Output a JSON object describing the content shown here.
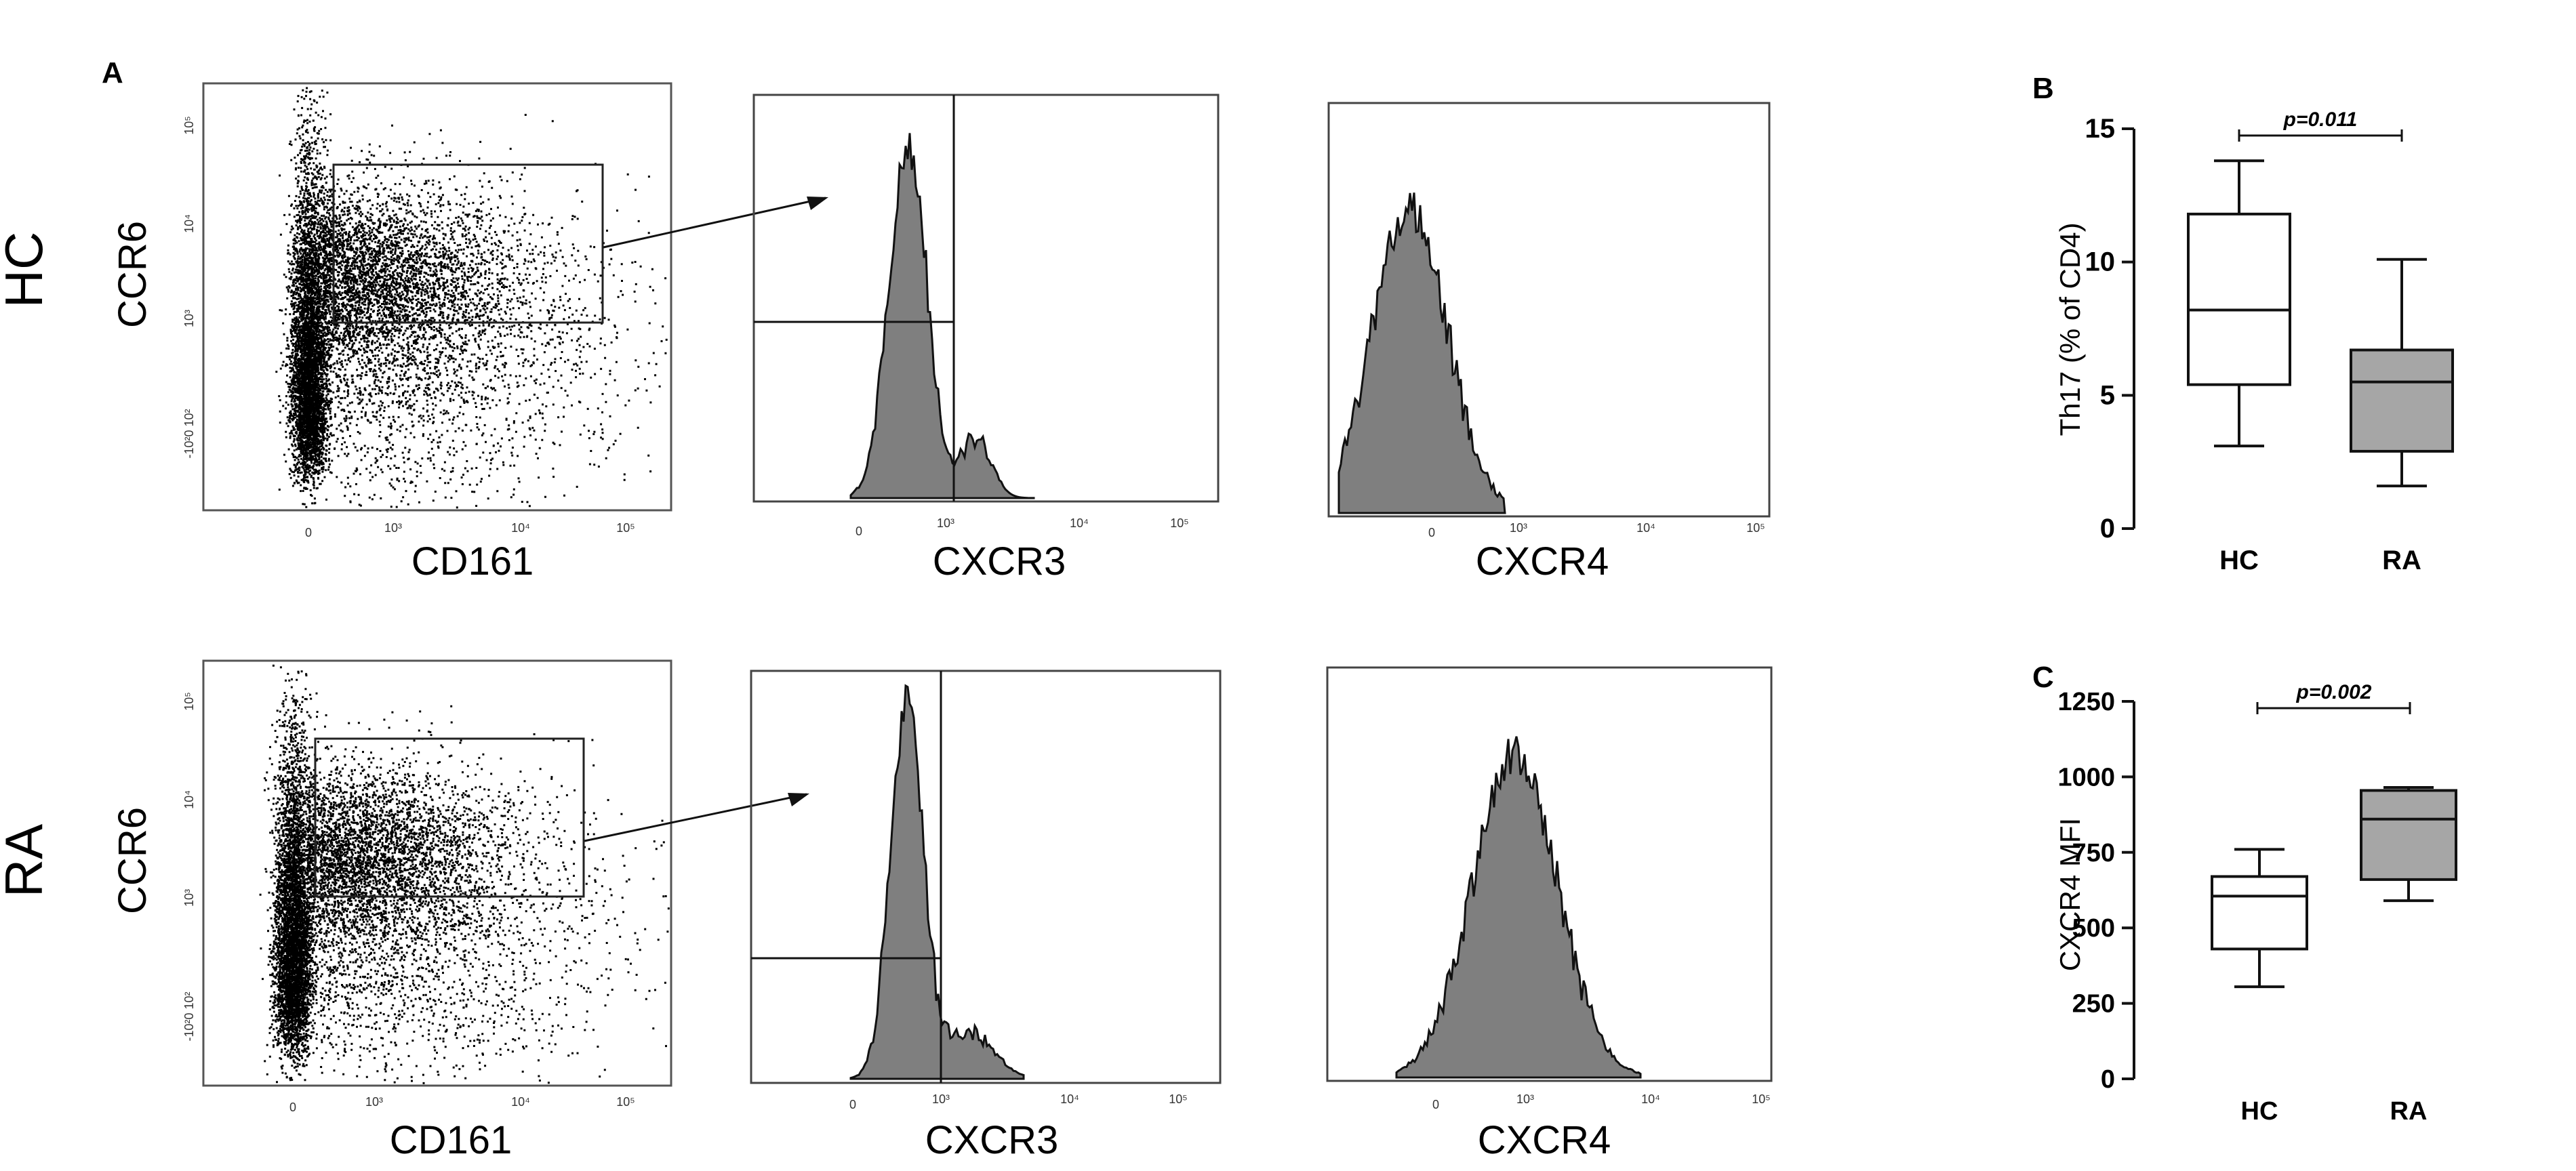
{
  "panels": {
    "A": {
      "letter": "A",
      "row_labels": [
        "HC",
        "RA"
      ],
      "dotplot": {
        "xlabel": "CD161",
        "ylabel": "CCR6",
        "xticks": [
          "0",
          "10³",
          "10⁴",
          "10⁵"
        ],
        "yticks": [
          "-10²0 10²",
          "10³",
          "10⁴",
          "10⁵"
        ]
      },
      "histograms": [
        {
          "xlabel": "CXCR3",
          "xticks": [
            "0",
            "10³",
            "10⁴",
            "10⁵"
          ]
        },
        {
          "xlabel": "CXCR4",
          "xticks": [
            "0",
            "10³",
            "10⁴",
            "10⁵"
          ]
        }
      ]
    },
    "B": {
      "letter": "B",
      "ylabel": "Th17 (% of CD4)",
      "p_label": "p=0.011"
    },
    "C": {
      "letter": "C",
      "ylabel": "CXCR4 MFI",
      "p_label": "p=0.002"
    }
  },
  "colors": {
    "box_hc": "#ffffff",
    "box_ra": "#a6a6a6",
    "histogram_fill": "#7f7f7f",
    "dots": "#000000"
  },
  "chart_data": [
    {
      "id": "panel-B",
      "type": "box",
      "title": "",
      "xlabel": "",
      "ylabel": "Th17 (% of CD4)",
      "categories": [
        "HC",
        "RA"
      ],
      "ylim": [
        0,
        15
      ],
      "yticks": [
        0,
        5,
        10,
        15
      ],
      "boxes": [
        {
          "name": "HC",
          "min": 3.1,
          "q1": 5.4,
          "median": 8.2,
          "q3": 11.8,
          "max": 13.8
        },
        {
          "name": "RA",
          "min": 1.6,
          "q1": 2.9,
          "median": 5.5,
          "q3": 6.7,
          "max": 10.1
        }
      ],
      "annotation": "p=0.011"
    },
    {
      "id": "panel-C",
      "type": "box",
      "title": "",
      "xlabel": "",
      "ylabel": "CXCR4 MFI",
      "categories": [
        "HC",
        "RA"
      ],
      "ylim": [
        0,
        1250
      ],
      "yticks": [
        0,
        250,
        500,
        750,
        1000,
        1250
      ],
      "boxes": [
        {
          "name": "HC",
          "min": 305,
          "q1": 430,
          "median": 605,
          "q3": 670,
          "max": 760
        },
        {
          "name": "RA",
          "min": 590,
          "q1": 660,
          "median": 860,
          "q3": 955,
          "max": 965
        }
      ],
      "annotation": "p=0.002"
    }
  ]
}
